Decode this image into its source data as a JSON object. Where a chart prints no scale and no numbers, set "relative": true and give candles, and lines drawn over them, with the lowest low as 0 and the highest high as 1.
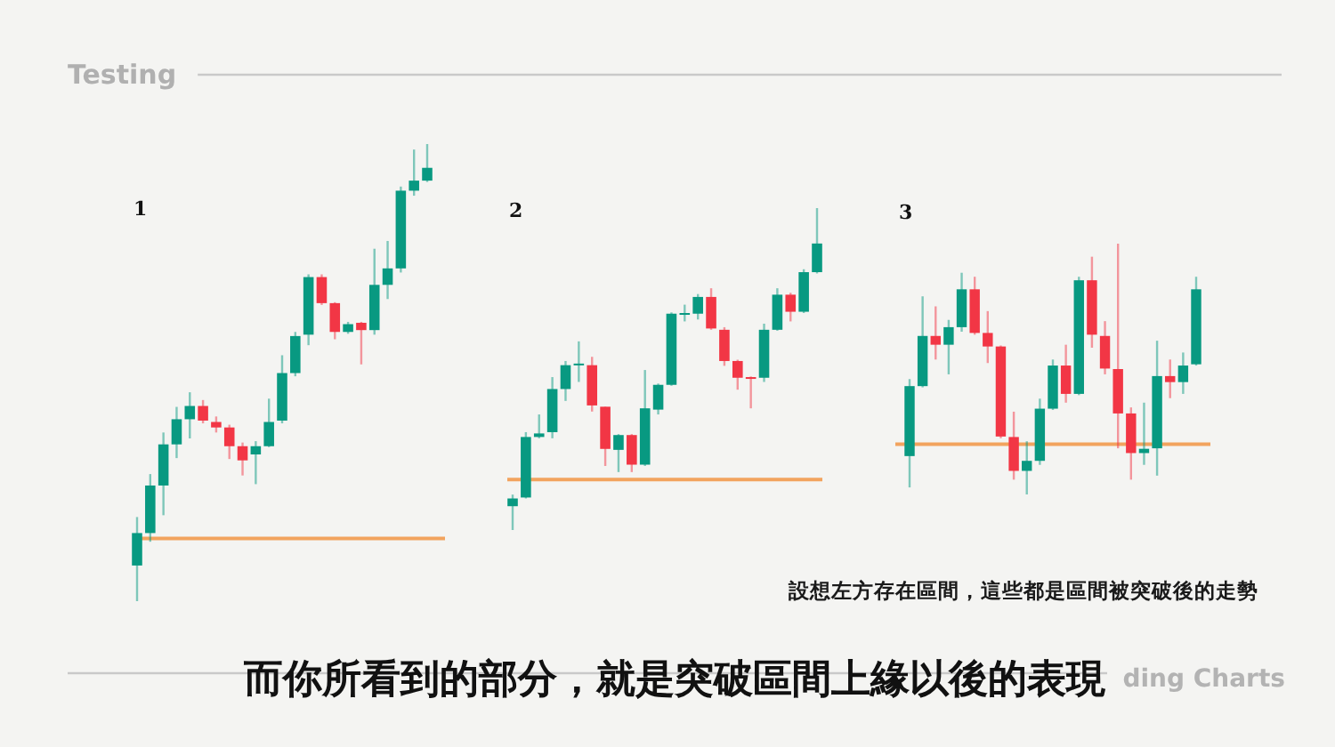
{
  "chart_data": [
    {
      "type": "candlestick",
      "title": "1",
      "relative": true,
      "categories": [
        null,
        null,
        null,
        null,
        null,
        null,
        null,
        null,
        null,
        null,
        null,
        null,
        null,
        null,
        null,
        null,
        null,
        null,
        null,
        null,
        null,
        null,
        null
      ],
      "ohlc": [
        [
          0.078,
          0.184,
          0,
          0.149
        ],
        [
          0.149,
          0.278,
          0.13,
          0.253
        ],
        [
          0.253,
          0.369,
          0.188,
          0.343
        ],
        [
          0.343,
          0.425,
          0.313,
          0.398
        ],
        [
          0.398,
          0.457,
          0.356,
          0.427
        ],
        [
          0.427,
          0.44,
          0.389,
          0.395
        ],
        [
          0.392,
          0.404,
          0.369,
          0.38
        ],
        [
          0.38,
          0.386,
          0.311,
          0.339
        ],
        [
          0.339,
          0.347,
          0.275,
          0.308
        ],
        [
          0.321,
          0.35,
          0.256,
          0.339
        ],
        [
          0.339,
          0.443,
          0.337,
          0.392
        ],
        [
          0.395,
          0.538,
          0.389,
          0.499
        ],
        [
          0.499,
          0.589,
          0.492,
          0.58
        ],
        [
          0.583,
          0.715,
          0.56,
          0.709
        ],
        [
          0.709,
          0.715,
          0.648,
          0.652
        ],
        [
          0.652,
          0.654,
          0.573,
          0.589
        ],
        [
          0.589,
          0.611,
          0.585,
          0.606
        ],
        [
          0.609,
          0.611,
          0.518,
          0.593
        ],
        [
          0.593,
          0.771,
          0.583,
          0.692
        ],
        [
          0.692,
          0.788,
          0.661,
          0.728
        ],
        [
          0.728,
          0.907,
          0.719,
          0.898
        ],
        [
          0.898,
          0.988,
          0.887,
          0.92
        ],
        [
          0.92,
          1,
          0.917,
          0.948
        ]
      ],
      "colors": [
        "#089981",
        "#089981",
        "#089981",
        "#089981",
        "#089981",
        "#f23645",
        "#f23645",
        "#f23645",
        "#f23645",
        "#089981",
        "#089981",
        "#089981",
        "#089981",
        "#089981",
        "#f23645",
        "#f23645",
        "#089981",
        "#f23645",
        "#089981",
        "#089981",
        "#089981",
        "#089981",
        "#089981"
      ],
      "ref_lines": [
        {
          "axis": "y",
          "value": 0.137,
          "color": "#f2a35e"
        }
      ]
    },
    {
      "type": "candlestick",
      "title": "2",
      "relative": true,
      "categories": [
        null,
        null,
        null,
        null,
        null,
        null,
        null,
        null,
        null,
        null,
        null,
        null,
        null,
        null,
        null,
        null,
        null,
        null,
        null,
        null,
        null,
        null,
        null,
        null
      ],
      "ohlc": [
        [
          0.074,
          0.11,
          0,
          0.098
        ],
        [
          0.101,
          0.304,
          0.098,
          0.289
        ],
        [
          0.289,
          0.359,
          0.285,
          0.3
        ],
        [
          0.304,
          0.475,
          0.285,
          0.438
        ],
        [
          0.438,
          0.525,
          0.401,
          0.512
        ],
        [
          0.514,
          0.586,
          0.46,
          0.517
        ],
        [
          0.512,
          0.538,
          0.368,
          0.387
        ],
        [
          0.383,
          0.383,
          0.199,
          0.252
        ],
        [
          0.249,
          0.298,
          0.18,
          0.295
        ],
        [
          0.295,
          0.298,
          0.18,
          0.203
        ],
        [
          0.203,
          0.497,
          0.199,
          0.378
        ],
        [
          0.374,
          0.455,
          0.359,
          0.451
        ],
        [
          0.451,
          0.676,
          0.448,
          0.672
        ],
        [
          0.67,
          0.7,
          0.648,
          0.674
        ],
        [
          0.672,
          0.733,
          0.654,
          0.724
        ],
        [
          0.724,
          0.751,
          0.622,
          0.626
        ],
        [
          0.622,
          0.63,
          0.51,
          0.525
        ],
        [
          0.525,
          0.529,
          0.436,
          0.473
        ],
        [
          0.475,
          0.477,
          0.378,
          0.471
        ],
        [
          0.473,
          0.641,
          0.46,
          0.622
        ],
        [
          0.622,
          0.751,
          0.619,
          0.731
        ],
        [
          0.731,
          0.737,
          0.648,
          0.678
        ],
        [
          0.678,
          0.81,
          0.674,
          0.801
        ],
        [
          0.801,
          1,
          0.797,
          0.89
        ]
      ],
      "colors": [
        "#089981",
        "#089981",
        "#089981",
        "#089981",
        "#089981",
        "#089981",
        "#f23645",
        "#f23645",
        "#089981",
        "#f23645",
        "#089981",
        "#089981",
        "#089981",
        "#089981",
        "#089981",
        "#f23645",
        "#f23645",
        "#f23645",
        "#f23645",
        "#089981",
        "#089981",
        "#f23645",
        "#089981",
        "#089981"
      ],
      "ref_lines": [
        {
          "axis": "y",
          "value": 0.157,
          "color": "#f2a35e"
        }
      ]
    },
    {
      "type": "candlestick",
      "title": "3",
      "relative": true,
      "categories": [
        null,
        null,
        null,
        null,
        null,
        null,
        null,
        null,
        null,
        null,
        null,
        null,
        null,
        null,
        null,
        null,
        null,
        null,
        null,
        null,
        null,
        null,
        null
      ],
      "ohlc": [
        [
          0.153,
          0.46,
          0.028,
          0.432
        ],
        [
          0.432,
          0.79,
          0.427,
          0.632
        ],
        [
          0.632,
          0.75,
          0.538,
          0.597
        ],
        [
          0.597,
          0.696,
          0.479,
          0.667
        ],
        [
          0.667,
          0.884,
          0.649,
          0.818
        ],
        [
          0.818,
          0.868,
          0.637,
          0.644
        ],
        [
          0.644,
          0.731,
          0.524,
          0.59
        ],
        [
          0.59,
          0.594,
          0.224,
          0.231
        ],
        [
          0.229,
          0.33,
          0.059,
          0.094
        ],
        [
          0.094,
          0.212,
          0,
          0.134
        ],
        [
          0.134,
          0.382,
          0.118,
          0.342
        ],
        [
          0.342,
          0.538,
          0.337,
          0.514
        ],
        [
          0.514,
          0.597,
          0.366,
          0.401
        ],
        [
          0.401,
          0.868,
          0.396,
          0.854
        ],
        [
          0.854,
          0.948,
          0.585,
          0.637
        ],
        [
          0.632,
          0.691,
          0.479,
          0.502
        ],
        [
          0.5,
          1,
          0.184,
          0.323
        ],
        [
          0.323,
          0.347,
          0.059,
          0.165
        ],
        [
          0.165,
          0.366,
          0.118,
          0.182
        ],
        [
          0.184,
          0.613,
          0.075,
          0.472
        ],
        [
          0.472,
          0.538,
          0.384,
          0.448
        ],
        [
          0.448,
          0.566,
          0.401,
          0.514
        ],
        [
          0.519,
          0.868,
          0.514,
          0.818
        ]
      ],
      "colors": [
        "#089981",
        "#089981",
        "#f23645",
        "#089981",
        "#089981",
        "#f23645",
        "#f23645",
        "#f23645",
        "#f23645",
        "#089981",
        "#089981",
        "#089981",
        "#f23645",
        "#089981",
        "#f23645",
        "#f23645",
        "#f23645",
        "#f23645",
        "#089981",
        "#089981",
        "#f23645",
        "#089981",
        "#089981"
      ],
      "ref_lines": [
        {
          "axis": "y",
          "value": 0.2,
          "color": "#f2a35e"
        }
      ]
    },
    {
      "type": "other",
      "title": "Testing",
      "annotations": [
        "設想左方存在區間，這些都是區間被突破後的走勢",
        "而你所看到的部分，就是突破區間上緣以後的表現",
        "ding Charts"
      ]
    }
  ]
}
